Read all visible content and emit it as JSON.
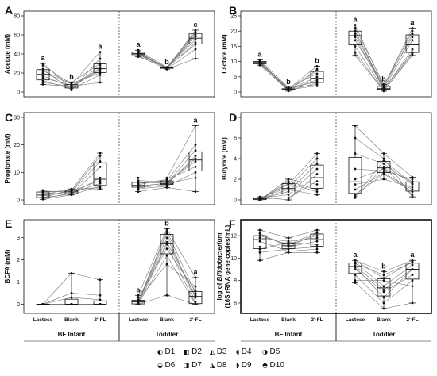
{
  "chart_data": [
    {
      "panel": "A",
      "type": "box",
      "ylabel": "Acetate (mM)",
      "ylim": [
        0,
        80
      ],
      "yticks": [
        0,
        20,
        40,
        60,
        80
      ],
      "groups": [
        {
          "name": "",
          "categories": [
            "Lactose",
            "Blank",
            "2'-FL"
          ],
          "sig": [
            "a",
            "b",
            "a"
          ],
          "values": [
            [
              28,
              17,
              12,
              10,
              22,
              30,
              15,
              24,
              20,
              8
            ],
            [
              8,
              5,
              3,
              6,
              10,
              4,
              7,
              2,
              9,
              6
            ],
            [
              42,
              24,
              18,
              10,
              30,
              28,
              22,
              35,
              20,
              25
            ]
          ]
        },
        {
          "name": "",
          "categories": [
            "Lactose",
            "Blank",
            "2'-FL"
          ],
          "sig": [
            "a",
            "b",
            "c"
          ],
          "values": [
            [
              40,
              44,
              38,
              42,
              39,
              41,
              43,
              37,
              40,
              42
            ],
            [
              25,
              26,
              24,
              25,
              26,
              25,
              24,
              26,
              25,
              25
            ],
            [
              65,
              50,
              35,
              62,
              55,
              60,
              45,
              63,
              58,
              52
            ]
          ]
        }
      ]
    },
    {
      "panel": "B",
      "type": "box",
      "ylabel": "Lactate (mM)",
      "ylim": [
        0,
        25
      ],
      "yticks": [
        0,
        5,
        10,
        15,
        20,
        25
      ],
      "groups": [
        {
          "name": "",
          "categories": [
            "Lactose",
            "Blank",
            "2'-FL"
          ],
          "sig": [
            "a",
            "b",
            "b"
          ],
          "values": [
            [
              9.5,
              10,
              9,
              10.5,
              9.2,
              9.8,
              10.2,
              8.8,
              9.6,
              10
            ],
            [
              1,
              0.5,
              0.8,
              1.5,
              0.3,
              1.2,
              0.7,
              0.9,
              1.1,
              0.6
            ],
            [
              8.5,
              3,
              2,
              6,
              7.5,
              2.5,
              5,
              4,
              3.5,
              7
            ]
          ]
        },
        {
          "name": "",
          "categories": [
            "Lactose",
            "Blank",
            "2'-FL"
          ],
          "sig": [
            "a",
            "b",
            "a"
          ],
          "values": [
            [
              22,
              18,
              13,
              20,
              21,
              15,
              19,
              12,
              17,
              20
            ],
            [
              2,
              1,
              0.5,
              1.5,
              2.5,
              0.8,
              1.2,
              0.3,
              2,
              1
            ],
            [
              21,
              13,
              12,
              19,
              18,
              14,
              17,
              12.5,
              20,
              13
            ]
          ]
        }
      ]
    },
    {
      "panel": "C",
      "type": "box",
      "ylabel": "Propionate (mM)",
      "ylim": [
        0,
        30
      ],
      "yticks": [
        0,
        10,
        20,
        30
      ],
      "groups": [
        {
          "name": "",
          "categories": [
            "Lactose",
            "Blank",
            "2'-FL"
          ],
          "sig": [
            "",
            "",
            ""
          ],
          "values": [
            [
              3.5,
              1,
              0.5,
              2,
              3,
              0.2,
              2.5,
              0.8,
              3.2,
              1.5
            ],
            [
              3.5,
              2,
              2.5,
              4,
              3,
              1.8,
              2.2,
              3.8,
              2.8,
              3.2
            ],
            [
              17,
              12,
              6,
              4,
              16,
              5,
              8,
              4.5,
              14,
              7
            ]
          ]
        },
        {
          "name": "",
          "categories": [
            "Lactose",
            "Blank",
            "2'-FL"
          ],
          "sig": [
            "",
            "",
            "a"
          ],
          "values": [
            [
              8,
              5,
              4,
              6,
              7,
              3,
              5.5,
              4.5,
              6.5,
              5
            ],
            [
              8,
              6,
              5,
              7,
              6.5,
              4.5,
              7.5,
              5.5,
              6,
              6
            ],
            [
              27,
              15,
              10,
              20,
              14,
              3,
              12,
              16,
              8,
              18
            ]
          ]
        }
      ]
    },
    {
      "panel": "D",
      "type": "box",
      "ylabel": "Butyrate (mM)",
      "ylim": [
        0,
        8
      ],
      "yticks": [
        0,
        2,
        4,
        6,
        8
      ],
      "groups": [
        {
          "name": "",
          "categories": [
            "Lactose",
            "Blank",
            "2'-FL"
          ],
          "sig": [
            "",
            "",
            ""
          ],
          "values": [
            [
              0.1,
              0.2,
              0,
              0.1,
              0.3,
              0,
              0.2,
              0.1,
              0,
              0.1
            ],
            [
              1.5,
              0.5,
              2,
              1,
              0,
              1.8,
              1.2,
              0.2,
              1.6,
              0.8
            ],
            [
              4.5,
              3,
              1.5,
              0.5,
              2.5,
              1,
              4,
              1.8,
              0.8,
              3.5
            ]
          ]
        },
        {
          "name": "",
          "categories": [
            "Lactose",
            "Blank",
            "2'-FL"
          ],
          "sig": [
            "",
            "",
            ""
          ],
          "values": [
            [
              7.2,
              4.5,
              0.5,
              2,
              3,
              0.2,
              1.5,
              6,
              0.3,
              1
            ],
            [
              4.5,
              3.5,
              2.5,
              3,
              2.8,
              3.2,
              2,
              4,
              3.8,
              2.6
            ],
            [
              2.2,
              1.5,
              0.8,
              1.8,
              2,
              0.5,
              1.2,
              0.3,
              1.6,
              1
            ]
          ]
        }
      ]
    },
    {
      "panel": "E",
      "type": "box",
      "ylabel": "BCFA (mM)",
      "ylim": [
        -0.2,
        3.6
      ],
      "yticks": [
        0,
        1,
        2,
        3
      ],
      "groups": [
        {
          "name": "",
          "categories": [
            "Lactose",
            "Blank",
            "2'-FL"
          ],
          "sig": [
            "",
            "",
            ""
          ],
          "values": [
            [
              0,
              0,
              0,
              0,
              0,
              0,
              0,
              0,
              0,
              0
            ],
            [
              1.4,
              0,
              0,
              0.5,
              0,
              0,
              0.3,
              0,
              0,
              0
            ],
            [
              1.1,
              0,
              0,
              0.4,
              0,
              0,
              0.2,
              0,
              0,
              0
            ]
          ]
        },
        {
          "name": "",
          "categories": [
            "Lactose",
            "Blank",
            "2'-FL"
          ],
          "sig": [
            "a",
            "b",
            "a"
          ],
          "values": [
            [
              0.4,
              0.1,
              0,
              0.2,
              0.1,
              0,
              0.3,
              0.05,
              0,
              0.1
            ],
            [
              3.4,
              3.3,
              2.7,
              1.8,
              3,
              0.4,
              2.5,
              3.2,
              2.2,
              2.8
            ],
            [
              1.2,
              0.5,
              0,
              0.8,
              0.3,
              0,
              0.6,
              0.1,
              0,
              0.4
            ]
          ]
        }
      ]
    },
    {
      "panel": "F",
      "type": "box",
      "ylabel_italic_prefix": "log of ",
      "ylabel_italic": "Bifidobacterium",
      "ylabel2": "(16S rRNA gene copies/mL)",
      "ylim": [
        5.5,
        13
      ],
      "yticks": [
        6,
        8,
        10,
        12
      ],
      "groups": [
        {
          "name": "",
          "categories": [
            "Lactose",
            "Blank",
            "2'-FL"
          ],
          "sig": [
            "",
            "",
            ""
          ],
          "values": [
            [
              12.5,
              11,
              9.8,
              12,
              11.8,
              10.5,
              12.2,
              11.5,
              10.8,
              12
            ],
            [
              11.8,
              11,
              10.5,
              11.2,
              11.5,
              10.8,
              11,
              10.6,
              11.4,
              11.2
            ],
            [
              12.5,
              11.5,
              10.5,
              12,
              11.8,
              11,
              12.2,
              10.8,
              11.2,
              12.3
            ]
          ]
        },
        {
          "name": "",
          "categories": [
            "Lactose",
            "Blank",
            "2'-FL"
          ],
          "sig": [
            "a",
            "b",
            "a"
          ],
          "values": [
            [
              9.8,
              9,
              7.8,
              9.5,
              9.2,
              8,
              9.6,
              8.5,
              9.8,
              9.3
            ],
            [
              8.8,
              7,
              5.5,
              8.5,
              6.5,
              8,
              7.5,
              6,
              8.2,
              7.2
            ],
            [
              9.8,
              8.5,
              6,
              9.6,
              9,
              7.5,
              9.4,
              8,
              9.7,
              9
            ]
          ]
        }
      ]
    }
  ],
  "group_labels": [
    "BF Infant",
    "Toddler"
  ],
  "legend": [
    "D1",
    "D2",
    "D3",
    "D4",
    "D5",
    "D6",
    "D7",
    "D8",
    "D9",
    "D10"
  ],
  "legend_glyphs": [
    "◐",
    "◧",
    "◭",
    "◖",
    "◑",
    "◒",
    "◨",
    "◮",
    "◗",
    "◓"
  ]
}
